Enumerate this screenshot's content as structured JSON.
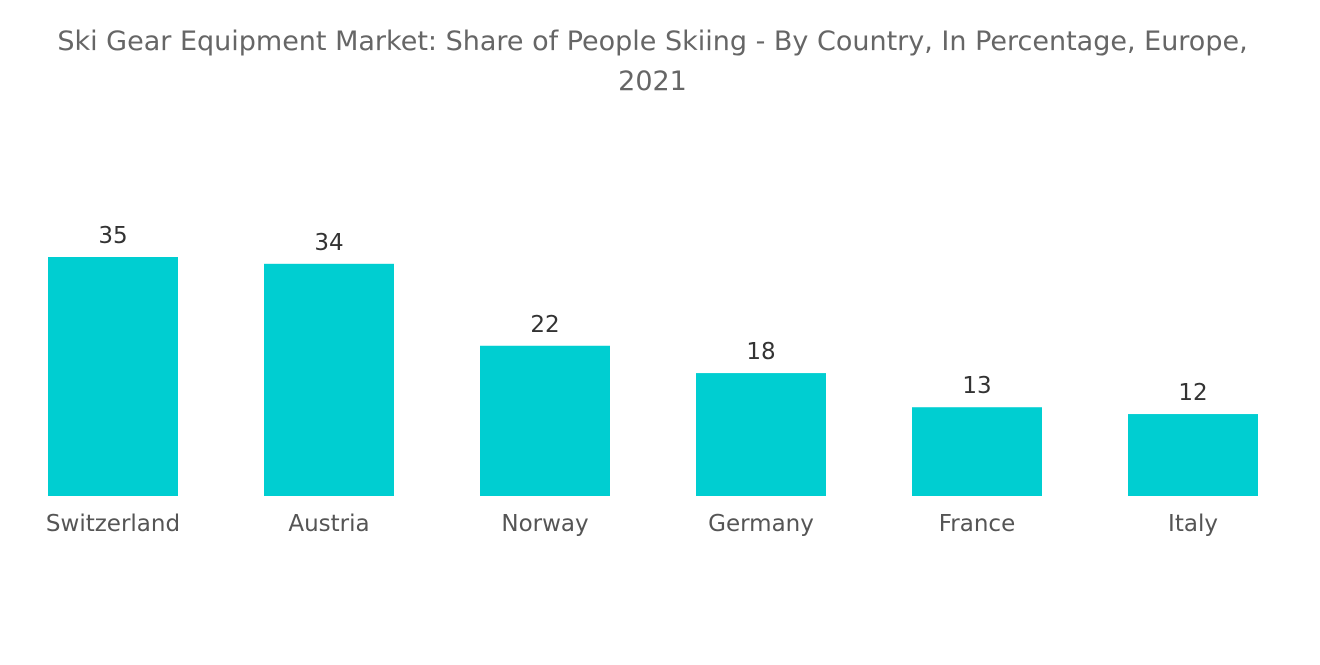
{
  "chart_data": {
    "type": "bar",
    "title": "Ski Gear Equipment Market: Share of People Skiing - By Country, In Percentage, Europe, 2021",
    "categories": [
      "Switzerland",
      "Austria",
      "Norway",
      "Germany",
      "France",
      "Italy"
    ],
    "values": [
      35,
      34,
      22,
      18,
      13,
      12
    ],
    "xlabel": "",
    "ylabel": "",
    "ylim": [
      0,
      35
    ],
    "grid": false,
    "legend": "none",
    "colors": {
      "bar": "#00ced1"
    }
  }
}
